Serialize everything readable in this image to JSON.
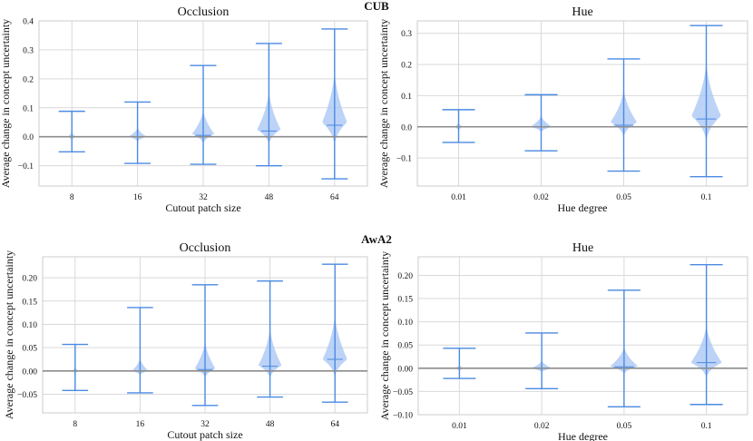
{
  "figure": {
    "sections": [
      "CUB",
      "AwA2"
    ],
    "ylabel": "Average change in concept uncertainty",
    "colors": {
      "violin": "#a9c7f5",
      "whisker": "#4a8ae3",
      "zero_line": "#8c8c8c"
    }
  },
  "chart_data": [
    {
      "type": "violin",
      "section": "CUB",
      "title": "Occlusion",
      "xlabel": "Cutout patch size",
      "ylabel": "Average change in concept uncertainty",
      "ylim": [
        -0.17,
        0.4
      ],
      "yticks": [
        -0.1,
        0.0,
        0.1,
        0.2,
        0.3,
        0.4
      ],
      "ytick_labels": [
        "−0.1",
        "0.0",
        "0.1",
        "0.2",
        "0.3",
        "0.4"
      ],
      "categories": [
        "8",
        "16",
        "32",
        "48",
        "64"
      ],
      "max": [
        0.088,
        0.12,
        0.246,
        0.322,
        0.372
      ],
      "min": [
        -0.052,
        -0.092,
        -0.095,
        -0.1,
        -0.145
      ],
      "median": [
        0.0,
        0.0,
        0.005,
        0.02,
        0.04
      ],
      "violin_top": [
        0.02,
        0.035,
        0.1,
        0.17,
        0.24
      ],
      "violin_bottom": [
        -0.015,
        -0.02,
        -0.03,
        -0.035,
        -0.04
      ],
      "violin_peak": [
        0.0,
        0.0,
        0.01,
        0.025,
        0.05
      ],
      "violin_halfwidth": [
        0.12,
        0.28,
        0.34,
        0.36,
        0.38
      ],
      "grid": true
    },
    {
      "type": "violin",
      "section": "CUB",
      "title": "Hue",
      "xlabel": "Hue degree",
      "ylabel": "Average change in concept uncertainty",
      "ylim": [
        -0.19,
        0.34
      ],
      "yticks": [
        -0.1,
        0.0,
        0.1,
        0.2,
        0.3
      ],
      "ytick_labels": [
        "−0.1",
        "0.0",
        "0.1",
        "0.2",
        "0.3"
      ],
      "categories": [
        "0.01",
        "0.02",
        "0.05",
        "0.1"
      ],
      "max": [
        0.055,
        0.103,
        0.218,
        0.325
      ],
      "min": [
        -0.05,
        -0.077,
        -0.142,
        -0.16
      ],
      "median": [
        0.0,
        0.0,
        0.005,
        0.025
      ],
      "violin_top": [
        0.015,
        0.04,
        0.13,
        0.22
      ],
      "violin_bottom": [
        -0.015,
        -0.02,
        -0.04,
        -0.06
      ],
      "violin_peak": [
        0.0,
        0.0,
        0.015,
        0.035
      ],
      "violin_halfwidth": [
        0.1,
        0.26,
        0.32,
        0.36
      ],
      "grid": true
    },
    {
      "type": "violin",
      "section": "AwA2",
      "title": "Occlusion",
      "xlabel": "Cutout patch size",
      "ylabel": "Average change in concept uncertainty",
      "ylim": [
        -0.09,
        0.245
      ],
      "yticks": [
        -0.05,
        0.0,
        0.05,
        0.1,
        0.15,
        0.2
      ],
      "ytick_labels": [
        "−0.05",
        "0.00",
        "0.05",
        "0.10",
        "0.15",
        "0.20"
      ],
      "categories": [
        "8",
        "16",
        "32",
        "48",
        "64"
      ],
      "max": [
        0.057,
        0.136,
        0.185,
        0.193,
        0.229
      ],
      "min": [
        -0.042,
        -0.047,
        -0.074,
        -0.056,
        -0.067
      ],
      "median": [
        0.0,
        0.0,
        0.003,
        0.01,
        0.025
      ],
      "violin_top": [
        0.01,
        0.03,
        0.07,
        0.1,
        0.13
      ],
      "violin_bottom": [
        -0.008,
        -0.01,
        -0.018,
        -0.02,
        -0.02
      ],
      "violin_peak": [
        0.0,
        0.0,
        0.005,
        0.012,
        0.025
      ],
      "violin_halfwidth": [
        0.1,
        0.26,
        0.32,
        0.36,
        0.38
      ],
      "grid": true
    },
    {
      "type": "violin",
      "section": "AwA2",
      "title": "Hue",
      "xlabel": "Hue degree",
      "ylabel": "Average change in concept uncertainty",
      "ylim": [
        -0.1,
        0.24
      ],
      "yticks": [
        -0.1,
        -0.05,
        0.0,
        0.05,
        0.1,
        0.15,
        0.2
      ],
      "ytick_labels": [
        "−0.10",
        "−0.05",
        "0.00",
        "0.05",
        "0.10",
        "0.15",
        "0.20"
      ],
      "categories": [
        "0.01",
        "0.02",
        "0.05",
        "0.1"
      ],
      "max": [
        0.043,
        0.076,
        0.168,
        0.223
      ],
      "min": [
        -0.022,
        -0.044,
        -0.083,
        -0.078
      ],
      "median": [
        0.0,
        0.0,
        0.003,
        0.012
      ],
      "violin_top": [
        0.008,
        0.018,
        0.05,
        0.1
      ],
      "violin_bottom": [
        -0.008,
        -0.01,
        -0.015,
        -0.025
      ],
      "violin_peak": [
        0.0,
        0.0,
        0.004,
        0.012
      ],
      "violin_halfwidth": [
        0.1,
        0.26,
        0.34,
        0.38
      ],
      "grid": true
    }
  ]
}
